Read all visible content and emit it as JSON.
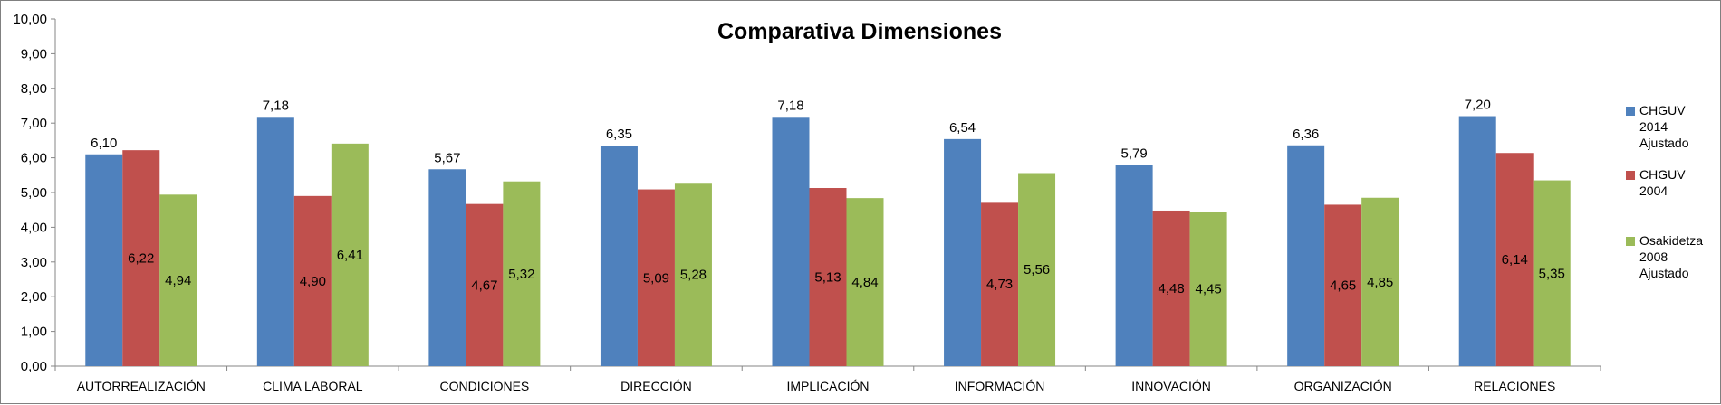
{
  "chart_data": {
    "type": "bar",
    "title": "Comparativa Dimensiones",
    "xlabel": "",
    "ylabel": "",
    "ylim": [
      0,
      10
    ],
    "ytick_step": 1,
    "ytick_labels": [
      "0,00",
      "1,00",
      "2,00",
      "3,00",
      "4,00",
      "5,00",
      "6,00",
      "7,00",
      "8,00",
      "9,00",
      "10,00"
    ],
    "grid": false,
    "legend_position": "right",
    "categories": [
      "AUTORREALIZACIÓN",
      "CLIMA LABORAL",
      "CONDICIONES",
      "DIRECCIÓN",
      "IMPLICACIÓN",
      "INFORMACIÓN",
      "INNOVACIÓN",
      "ORGANIZACIÓN",
      "RELACIONES"
    ],
    "series": [
      {
        "name": "CHGUV 2014 Ajustado",
        "legend_lines": [
          "CHGUV",
          "2014",
          "Ajustado"
        ],
        "color": "#4F81BD",
        "values": [
          6.1,
          7.18,
          5.67,
          6.35,
          7.18,
          6.54,
          5.79,
          6.36,
          7.2
        ],
        "labels": [
          "6,10",
          "7,18",
          "5,67",
          "6,35",
          "7,18",
          "6,54",
          "5,79",
          "6,36",
          "7,20"
        ],
        "label_position": "outside_end"
      },
      {
        "name": "CHGUV 2004",
        "legend_lines": [
          "CHGUV",
          "2004"
        ],
        "color": "#C0504D",
        "values": [
          6.22,
          4.9,
          4.67,
          5.09,
          5.13,
          4.73,
          4.48,
          4.65,
          6.14
        ],
        "labels": [
          "6,22",
          "4,90",
          "4,67",
          "5,09",
          "5,13",
          "4,73",
          "4,48",
          "4,65",
          "6,14"
        ],
        "label_position": "center"
      },
      {
        "name": "Osakidetza 2008 Ajustado",
        "legend_lines": [
          "Osakidetza",
          "2008",
          "Ajustado"
        ],
        "color": "#9BBB59",
        "values": [
          4.94,
          6.41,
          5.32,
          5.28,
          4.84,
          5.56,
          4.45,
          4.85,
          5.35
        ],
        "labels": [
          "4,94",
          "6,41",
          "5,32",
          "5,28",
          "4,84",
          "5,56",
          "4,45",
          "4,85",
          "5,35"
        ],
        "label_position": "center"
      }
    ]
  }
}
